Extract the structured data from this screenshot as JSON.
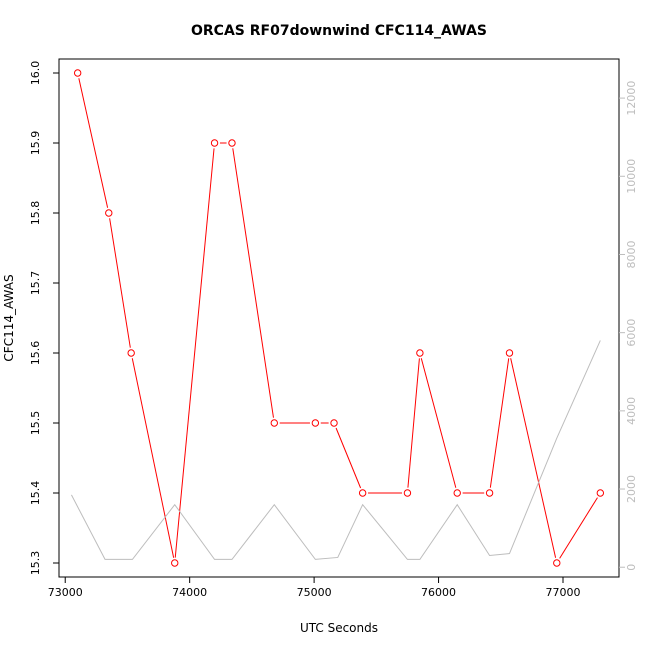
{
  "chart_data": {
    "type": "line",
    "title": "ORCAS RF07downwind CFC114_AWAS",
    "xlabel": "UTC Seconds",
    "ylabel": "CFC114_AWAS",
    "xlim": [
      72950,
      77450
    ],
    "ylim": [
      15.28,
      16.02
    ],
    "y2lim": [
      -250,
      13000
    ],
    "x_ticks": [
      73000,
      74000,
      75000,
      76000,
      77000
    ],
    "y_ticks": [
      15.3,
      15.4,
      15.5,
      15.6,
      15.7,
      15.8,
      15.9,
      16.0
    ],
    "y2_ticks": [
      0,
      2000,
      4000,
      6000,
      8000,
      10000,
      12000
    ],
    "grid": false,
    "legend": "none",
    "series": [
      {
        "color": "#ff0000",
        "marker": "open-circle",
        "axis": "left",
        "x": [
          73100,
          73350,
          73530,
          73880,
          74200,
          74340,
          74680,
          75010,
          75160,
          75390,
          75750,
          75850,
          76150,
          76410,
          76570,
          76950,
          77300
        ],
        "y": [
          16.0,
          15.8,
          15.6,
          15.3,
          15.9,
          15.9,
          15.5,
          15.5,
          15.5,
          15.4,
          15.4,
          15.6,
          15.4,
          15.4,
          15.6,
          15.3,
          15.4
        ]
      },
      {
        "color": "#bdbdbd",
        "marker": "none",
        "axis": "right",
        "x": [
          73050,
          73320,
          73540,
          73880,
          74200,
          74340,
          74680,
          75010,
          75190,
          75390,
          75750,
          75850,
          76150,
          76410,
          76570,
          76950,
          77300
        ],
        "y": [
          1850,
          200,
          200,
          1600,
          200,
          200,
          1600,
          200,
          250,
          1600,
          200,
          200,
          1600,
          300,
          350,
          3300,
          5800
        ]
      }
    ]
  }
}
